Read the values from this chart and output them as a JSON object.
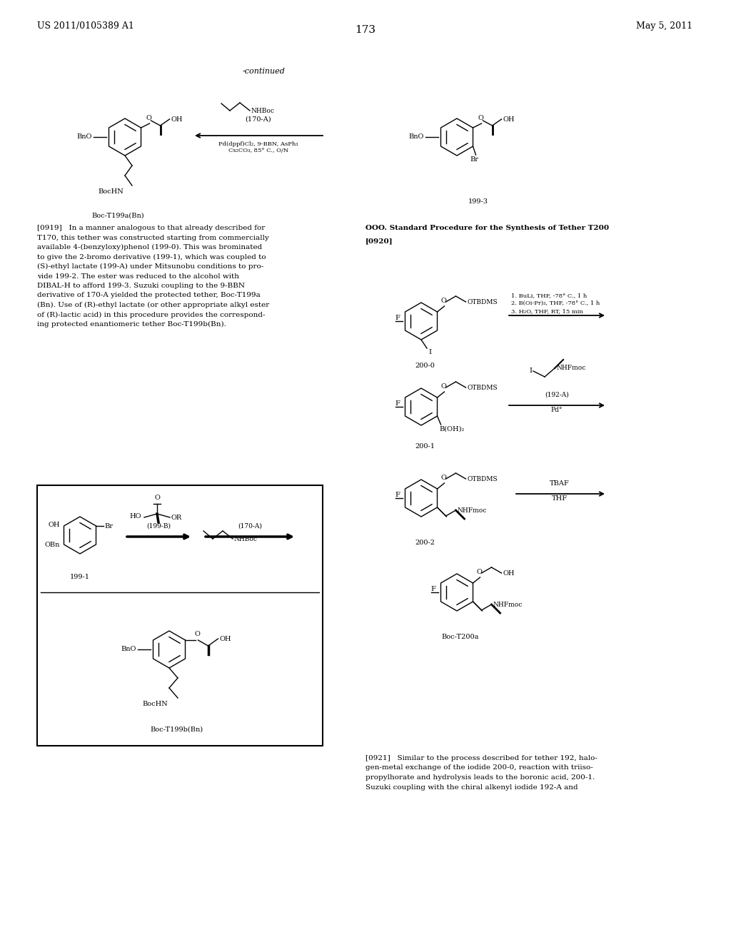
{
  "page_number": "173",
  "patent_number": "US 2011/0105389 A1",
  "patent_date": "May 5, 2011",
  "continued_label": "-continued",
  "background_color": "#ffffff",
  "text_color": "#000000",
  "font_size_header": 9,
  "font_size_body": 7.5,
  "font_size_label": 7,
  "section_title": "OOO. Standard Procedure for the Synthesis of Tether T200"
}
